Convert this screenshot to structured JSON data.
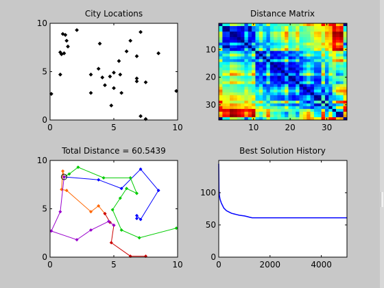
{
  "colors": {
    "figure_bg": "#c8c8c8",
    "axes_bg": "#ffffff",
    "black": "#000000"
  },
  "chart_data": [
    {
      "type": "scatter",
      "title": "City Locations",
      "xlim": [
        0,
        10
      ],
      "ylim": [
        0,
        10
      ],
      "xticks": [
        "0",
        "5",
        "10"
      ],
      "yticks": [
        "0",
        "5",
        "10"
      ],
      "marker": "diamond",
      "color": "#000000",
      "x": [
        0.1,
        0.8,
        0.9,
        1.0,
        1.2,
        1.3,
        1.4,
        0.8,
        1.1,
        2.1,
        3.2,
        3.2,
        3.8,
        3.9,
        4.1,
        4.3,
        4.7,
        5.0,
        4.8,
        5.0,
        5.5,
        5.6,
        5.4,
        6.0,
        6.3,
        6.8,
        6.8,
        6.8,
        7.1,
        7.5,
        8.5,
        9.9,
        7.1,
        7.5
      ],
      "y": [
        2.7,
        7.0,
        6.8,
        8.9,
        8.8,
        8.2,
        7.6,
        4.7,
        6.9,
        9.3,
        4.7,
        2.8,
        5.3,
        7.9,
        4.4,
        3.6,
        4.5,
        3.3,
        1.5,
        4.9,
        4.7,
        2.8,
        6.1,
        7.1,
        8.2,
        6.6,
        4.3,
        4.0,
        9.1,
        3.9,
        6.9,
        3.0,
        0.4,
        0.1
      ]
    },
    {
      "type": "heatmap",
      "title": "Distance Matrix",
      "xlim": [
        0.5,
        35.5
      ],
      "ylim": [
        0.5,
        35.5
      ],
      "xticks": [
        "10",
        "20",
        "30"
      ],
      "yticks": [
        "10",
        "20",
        "30"
      ],
      "colormap": "jet",
      "n": 35
    },
    {
      "type": "line",
      "title": "Total Distance = 60.5439",
      "xlim": [
        0,
        10
      ],
      "ylim": [
        0,
        10
      ],
      "xticks": [
        "0",
        "5",
        "10"
      ],
      "yticks": [
        "0",
        "5",
        "10"
      ],
      "start": {
        "x": 1.1,
        "y": 8.3
      },
      "series": [
        {
          "color": "#0000ff",
          "x": [
            1.1,
            3.8,
            5.6,
            7.1,
            8.5,
            7.1,
            6.8,
            6.8
          ],
          "y": [
            8.3,
            8.0,
            7.1,
            9.1,
            6.9,
            3.9,
            4.3,
            4.0
          ]
        },
        {
          "color": "#00cc00",
          "x": [
            1.1,
            1.5,
            2.2,
            4.2,
            6.3,
            6.8,
            6.0,
            5.5,
            4.9,
            5.6,
            7.0,
            9.9
          ],
          "y": [
            8.3,
            8.6,
            9.3,
            8.2,
            8.2,
            6.6,
            7.1,
            6.1,
            4.9,
            2.8,
            2.0,
            3.0
          ]
        },
        {
          "color": "#ff6600",
          "x": [
            1.1,
            1.0,
            0.9,
            1.3,
            3.2,
            3.8,
            4.3
          ],
          "y": [
            8.3,
            8.9,
            7.0,
            6.9,
            4.7,
            5.3,
            4.5
          ]
        },
        {
          "color": "#cc0000",
          "x": [
            4.3,
            4.7,
            5.0,
            4.8,
            6.3,
            7.5
          ],
          "y": [
            4.5,
            3.6,
            3.3,
            1.5,
            0.1,
            0.1
          ]
        },
        {
          "color": "#9900cc",
          "x": [
            1.1,
            0.8,
            0.1,
            2.1,
            3.2,
            4.6,
            5.0
          ],
          "y": [
            8.3,
            4.7,
            2.7,
            1.8,
            2.8,
            3.7,
            3.3
          ]
        }
      ]
    },
    {
      "type": "line",
      "title": "Best Solution History",
      "xlim": [
        0,
        5000
      ],
      "ylim": [
        0,
        150
      ],
      "xticks": [
        "0",
        "2000",
        "4000"
      ],
      "yticks": [
        "0",
        "50",
        "100"
      ],
      "series": [
        {
          "color": "#0000ff",
          "x": [
            0,
            10,
            25,
            50,
            100,
            200,
            300,
            400,
            500,
            600,
            700,
            800,
            900,
            1000,
            1100,
            1200,
            1300,
            2000,
            3000,
            4000,
            5000
          ],
          "y": [
            145,
            104,
            96,
            90,
            84,
            76,
            72,
            70,
            68,
            67,
            66,
            65,
            64.5,
            64,
            63,
            62,
            61,
            61,
            61,
            61,
            61
          ]
        }
      ]
    }
  ]
}
